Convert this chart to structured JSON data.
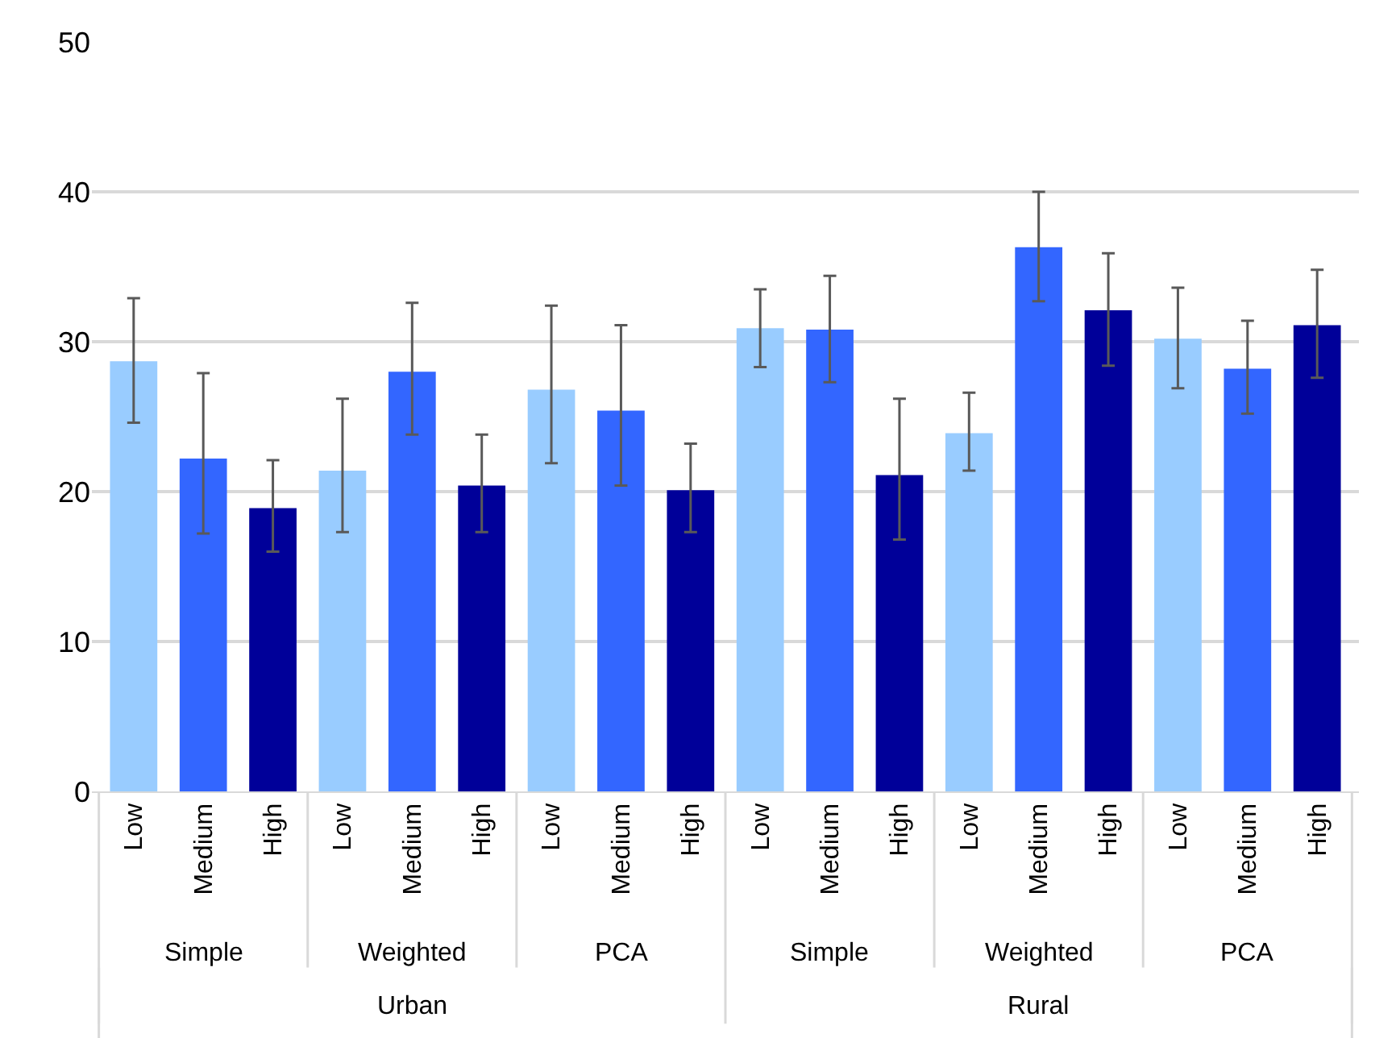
{
  "chart_data": {
    "type": "bar",
    "categories": [
      "Low",
      "Medium",
      "High",
      "Low",
      "Medium",
      "High",
      "Low",
      "Medium",
      "High",
      "Low",
      "Medium",
      "High",
      "Low",
      "Medium",
      "High",
      "Low",
      "Medium",
      "High"
    ],
    "values": [
      28.7,
      22.2,
      18.9,
      21.4,
      28.0,
      20.4,
      26.8,
      25.4,
      20.1,
      30.9,
      30.8,
      21.1,
      23.9,
      36.3,
      32.1,
      30.2,
      28.2,
      31.1
    ],
    "errors": [
      [
        24.6,
        32.9
      ],
      [
        17.2,
        27.9
      ],
      [
        16.0,
        22.1
      ],
      [
        17.3,
        26.2
      ],
      [
        23.8,
        32.6
      ],
      [
        17.3,
        23.8
      ],
      [
        21.9,
        32.4
      ],
      [
        20.4,
        31.1
      ],
      [
        17.3,
        23.2
      ],
      [
        28.3,
        33.5
      ],
      [
        27.3,
        34.4
      ],
      [
        16.8,
        26.2
      ],
      [
        21.4,
        26.6
      ],
      [
        32.7,
        40.0
      ],
      [
        28.4,
        35.9
      ],
      [
        26.9,
        33.6
      ],
      [
        25.2,
        31.4
      ],
      [
        27.6,
        34.8
      ]
    ],
    "colors": [
      "#99ccff",
      "#3366ff",
      "#000099",
      "#99ccff",
      "#3366ff",
      "#000099",
      "#99ccff",
      "#3366ff",
      "#000099",
      "#99ccff",
      "#3366ff",
      "#000099",
      "#99ccff",
      "#3366ff",
      "#000099",
      "#99ccff",
      "#3366ff",
      "#000099"
    ],
    "annotations": [
      "Simple",
      "Weighted",
      "PCA",
      "Simple",
      "Weighted",
      "PCA",
      "Urban",
      "Rural"
    ],
    "ylim": [
      0,
      50
    ],
    "yticks": [
      0,
      10,
      20,
      30,
      40,
      50
    ],
    "grid": "y"
  }
}
